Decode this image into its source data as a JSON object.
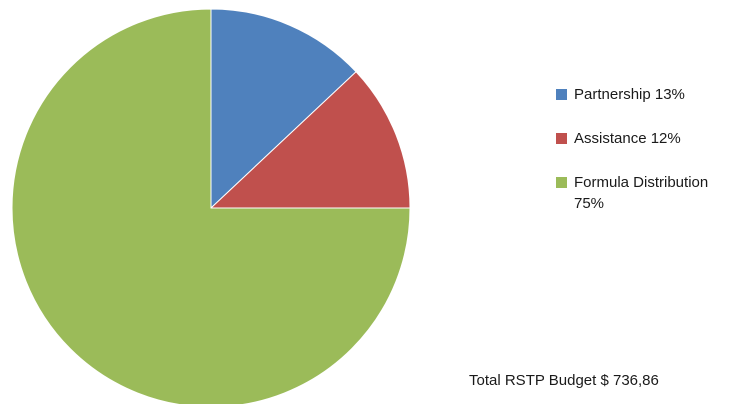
{
  "chart_data": {
    "type": "pie",
    "slices": [
      {
        "label": "Partnership 13%",
        "value": 13,
        "color": "#4f81bd"
      },
      {
        "label": "Assistance 12%",
        "value": 12,
        "color": "#c0504d"
      },
      {
        "label": "Formula Distribution 75%",
        "value": 75,
        "color": "#9bbb59"
      }
    ],
    "legend_position": "right"
  },
  "footer": {
    "total_text": "Total RSTP Budget $ 736,86"
  }
}
